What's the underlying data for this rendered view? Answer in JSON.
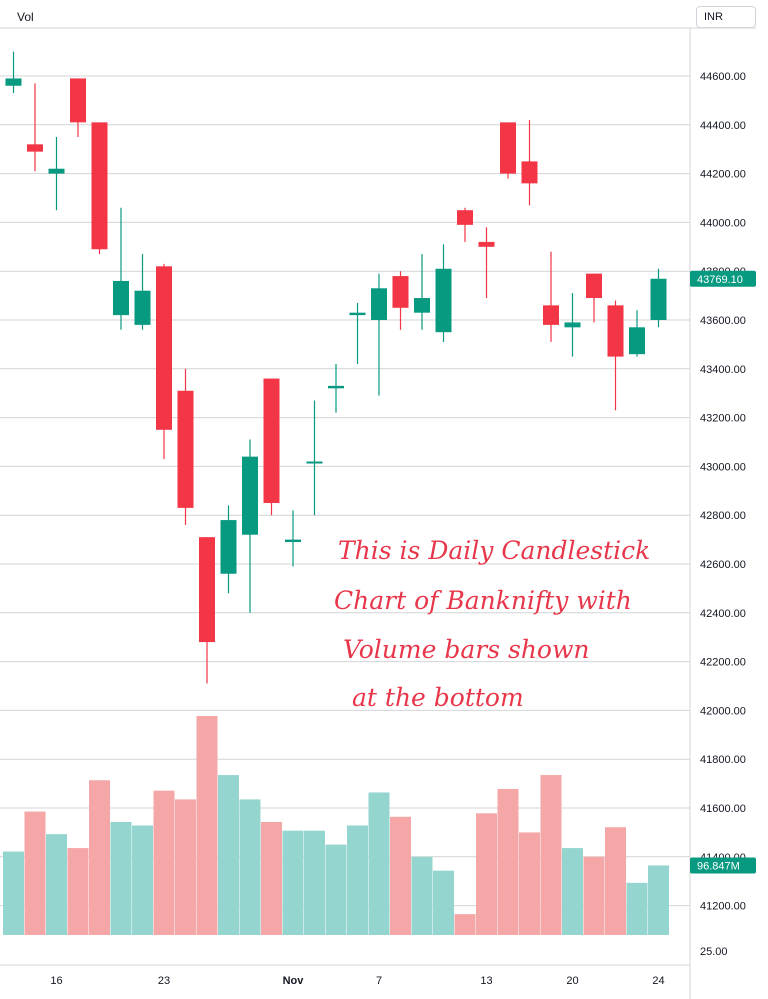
{
  "header": {
    "volume_label": "Vol",
    "currency": "INR"
  },
  "colors": {
    "up": "#089981",
    "down": "#f23645",
    "up_volume": "#95d5cf",
    "down_volume": "#f5a6a6",
    "grid": "#d4d4d4",
    "note": "#e8364a"
  },
  "chart_data": {
    "type": "candlestick",
    "instrument": "",
    "y_ticks": [
      "44600.00",
      "44400.00",
      "44200.00",
      "44000.00",
      "43800.00",
      "43600.00",
      "43400.00",
      "43200.00",
      "43000.00",
      "42800.00",
      "42600.00",
      "42400.00",
      "42200.00",
      "42000.00",
      "41800.00",
      "41600.00",
      "41400.00",
      "41200.00"
    ],
    "ylim": [
      41000,
      44700
    ],
    "x_labels": [
      "16",
      "23",
      "Nov",
      "7",
      "13",
      "20",
      "24"
    ],
    "last_price_tag": "43769.10",
    "volume_tag": "96.847M",
    "volume_axis_label": "25.00",
    "volume_scale_max": 130,
    "candles": [
      {
        "o": 44560,
        "h": 44700,
        "l": 44530,
        "c": 44590,
        "v": 48
      },
      {
        "o": 44320,
        "h": 44570,
        "l": 44210,
        "c": 44290,
        "v": 71
      },
      {
        "o": 44200,
        "h": 44350,
        "l": 44050,
        "c": 44220,
        "v": 58
      },
      {
        "o": 44590,
        "h": 44590,
        "l": 44350,
        "c": 44410,
        "v": 50
      },
      {
        "o": 44410,
        "h": 44410,
        "l": 43870,
        "c": 43890,
        "v": 89
      },
      {
        "o": 43620,
        "h": 44060,
        "l": 43560,
        "c": 43760,
        "v": 65
      },
      {
        "o": 43580,
        "h": 43870,
        "l": 43560,
        "c": 43720,
        "v": 63
      },
      {
        "o": 43820,
        "h": 43830,
        "l": 43030,
        "c": 43150,
        "v": 83
      },
      {
        "o": 43310,
        "h": 43400,
        "l": 42760,
        "c": 42830,
        "v": 78
      },
      {
        "o": 42710,
        "h": 42710,
        "l": 42110,
        "c": 42280,
        "v": 126
      },
      {
        "o": 42560,
        "h": 42840,
        "l": 42480,
        "c": 42780,
        "v": 92
      },
      {
        "o": 42720,
        "h": 43110,
        "l": 42400,
        "c": 43040,
        "v": 78
      },
      {
        "o": 43360,
        "h": 43360,
        "l": 42800,
        "c": 42850,
        "v": 65
      },
      {
        "o": 42690,
        "h": 42820,
        "l": 42590,
        "c": 42700,
        "v": 60
      },
      {
        "o": 43020,
        "h": 43270,
        "l": 42800,
        "c": 43020,
        "v": 60
      },
      {
        "o": 43320,
        "h": 43420,
        "l": 43220,
        "c": 43330,
        "v": 52
      },
      {
        "o": 43620,
        "h": 43670,
        "l": 43420,
        "c": 43630,
        "v": 63
      },
      {
        "o": 43600,
        "h": 43790,
        "l": 43290,
        "c": 43730,
        "v": 82
      },
      {
        "o": 43780,
        "h": 43800,
        "l": 43560,
        "c": 43650,
        "v": 68
      },
      {
        "o": 43630,
        "h": 43870,
        "l": 43560,
        "c": 43690,
        "v": 45
      },
      {
        "o": 43550,
        "h": 43910,
        "l": 43510,
        "c": 43810,
        "v": 37
      },
      {
        "o": 44050,
        "h": 44060,
        "l": 43920,
        "c": 43990,
        "v": 12
      },
      {
        "o": 43920,
        "h": 43980,
        "l": 43690,
        "c": 43900,
        "v": 70
      },
      {
        "o": 44410,
        "h": 44410,
        "l": 44180,
        "c": 44200,
        "v": 84
      },
      {
        "o": 44250,
        "h": 44420,
        "l": 44070,
        "c": 44160,
        "v": 59
      },
      {
        "o": 43660,
        "h": 43880,
        "l": 43510,
        "c": 43580,
        "v": 92
      },
      {
        "o": 43570,
        "h": 43710,
        "l": 43450,
        "c": 43590,
        "v": 50
      },
      {
        "o": 43790,
        "h": 43790,
        "l": 43590,
        "c": 43690,
        "v": 45
      },
      {
        "o": 43660,
        "h": 43680,
        "l": 43230,
        "c": 43450,
        "v": 62
      },
      {
        "o": 43460,
        "h": 43640,
        "l": 43450,
        "c": 43570,
        "v": 30
      },
      {
        "o": 43600,
        "h": 43810,
        "l": 43570,
        "c": 43769,
        "v": 40
      }
    ]
  },
  "annotation": {
    "line1": "This is Daily Candlestick",
    "line2": "Chart of Banknifty with",
    "line3": "Volume bars shown",
    "line4": "at the bottom"
  }
}
